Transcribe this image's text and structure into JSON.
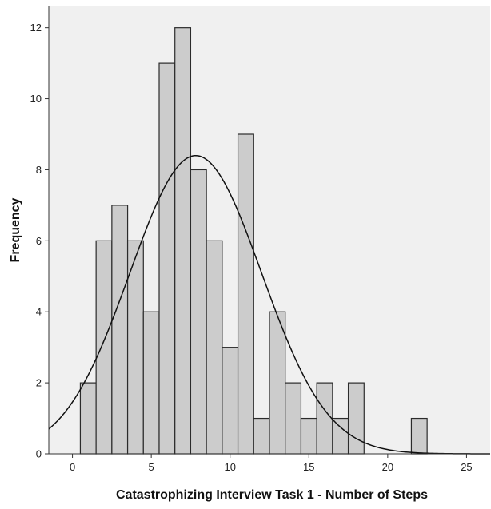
{
  "chart_data": {
    "type": "bar",
    "subtype": "histogram",
    "title": "",
    "xlabel": "Catastrophizing Interview Task 1 - Number of Steps",
    "ylabel": "Frequency",
    "xlim": [
      -1.5,
      26.5
    ],
    "ylim": [
      0,
      12.6
    ],
    "xticks": [
      0,
      5,
      10,
      15,
      20,
      25
    ],
    "yticks": [
      0,
      2,
      4,
      6,
      8,
      10,
      12
    ],
    "bin_width": 1,
    "bins": [
      {
        "center": 1,
        "count": 2
      },
      {
        "center": 2,
        "count": 6
      },
      {
        "center": 3,
        "count": 7
      },
      {
        "center": 4,
        "count": 6
      },
      {
        "center": 5,
        "count": 4
      },
      {
        "center": 6,
        "count": 11
      },
      {
        "center": 7,
        "count": 12
      },
      {
        "center": 8,
        "count": 8
      },
      {
        "center": 9,
        "count": 6
      },
      {
        "center": 10,
        "count": 3
      },
      {
        "center": 11,
        "count": 9
      },
      {
        "center": 12,
        "count": 1
      },
      {
        "center": 13,
        "count": 4
      },
      {
        "center": 14,
        "count": 2
      },
      {
        "center": 15,
        "count": 1
      },
      {
        "center": 16,
        "count": 2
      },
      {
        "center": 17,
        "count": 1
      },
      {
        "center": 18,
        "count": 2
      },
      {
        "center": 22,
        "count": 1
      }
    ],
    "normal_curve": {
      "mean": 7.82,
      "sd": 4.18,
      "n": 88
    },
    "grid": false,
    "colors": {
      "bar_fill": "#cccccc",
      "bar_stroke": "#2b2b2b",
      "plot_background": "#f0f0f0",
      "curve": "#111111"
    }
  }
}
